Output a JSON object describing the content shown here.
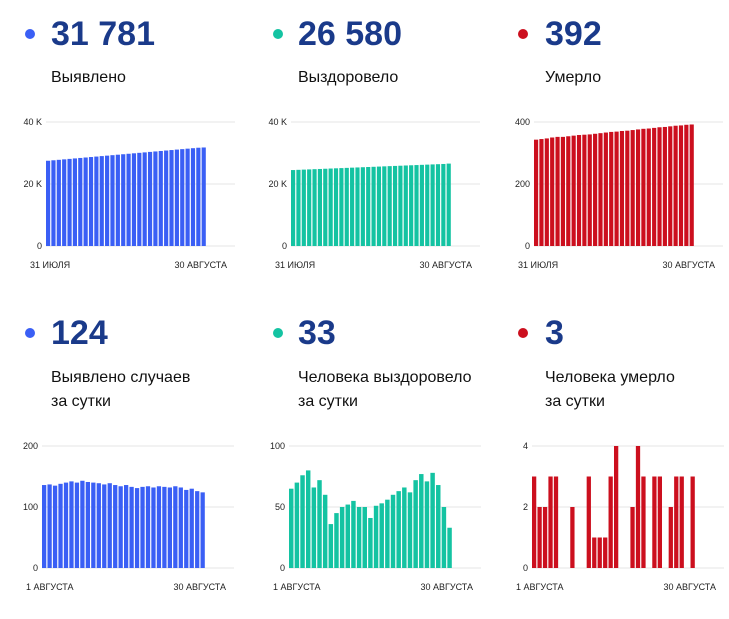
{
  "panels": [
    {
      "value": "31 781",
      "label_lines": [
        "Выявлено"
      ],
      "color": "#3a5ff5",
      "chart_data": {
        "type": "bar",
        "series": [
          {
            "values": [
              27500,
              27650,
              27800,
              27950,
              28100,
              28250,
              28400,
              28550,
              28700,
              28850,
              29000,
              29150,
              29300,
              29450,
              29600,
              29750,
              29900,
              30050,
              30200,
              30350,
              30500,
              30650,
              30800,
              30950,
              31100,
              31250,
              31400,
              31550,
              31700,
              31781
            ]
          }
        ],
        "ylim": [
          0,
          40000
        ],
        "yticks": [
          0,
          20000,
          40000
        ],
        "ytick_labels": [
          "0",
          "20 K",
          "40 K"
        ],
        "x_start_label": "31 ИЮЛЯ",
        "x_end_label": "30 АВГУСТА",
        "grid": true
      }
    },
    {
      "value": "26 580",
      "label_lines": [
        "Выздоровело"
      ],
      "color": "#14c3a2",
      "chart_data": {
        "type": "bar",
        "series": [
          {
            "values": [
              24500,
              24570,
              24640,
              24710,
              24780,
              24850,
              24920,
              24990,
              25060,
              25130,
              25200,
              25270,
              25340,
              25410,
              25480,
              25550,
              25620,
              25690,
              25760,
              25830,
              25900,
              25970,
              26040,
              26110,
              26180,
              26250,
              26320,
              26390,
              26460,
              26580
            ]
          }
        ],
        "ylim": [
          0,
          40000
        ],
        "yticks": [
          0,
          20000,
          40000
        ],
        "ytick_labels": [
          "0",
          "20 K",
          "40 K"
        ],
        "x_start_label": "31 ИЮЛЯ",
        "x_end_label": "30 АВГУСТА",
        "grid": true
      }
    },
    {
      "value": "392",
      "label_lines": [
        "Умерло"
      ],
      "color": "#cc0f1e",
      "chart_data": {
        "type": "bar",
        "series": [
          {
            "values": [
              343,
              345,
              347,
              350,
              352,
              352,
              354,
              356,
              358,
              359,
              360,
              362,
              364,
              366,
              368,
              369,
              371,
              372,
              374,
              376,
              378,
              379,
              381,
              383,
              384,
              386,
              388,
              389,
              391,
              392
            ]
          }
        ],
        "ylim": [
          0,
          400
        ],
        "yticks": [
          0,
          200,
          400
        ],
        "ytick_labels": [
          "0",
          "200",
          "400"
        ],
        "x_start_label": "31 ИЮЛЯ",
        "x_end_label": "30 АВГУСТА",
        "grid": true
      }
    },
    {
      "value": "124",
      "label_lines": [
        "Выявлено случаев",
        "за сутки"
      ],
      "color": "#3a5ff5",
      "chart_data": {
        "type": "bar",
        "series": [
          {
            "values": [
              136,
              137,
              135,
              138,
              140,
              142,
              140,
              143,
              141,
              140,
              139,
              137,
              139,
              136,
              134,
              136,
              133,
              131,
              133,
              134,
              132,
              134,
              133,
              132,
              134,
              132,
              128,
              130,
              126,
              124
            ]
          }
        ],
        "ylim": [
          0,
          200
        ],
        "yticks": [
          0,
          100,
          200
        ],
        "ytick_labels": [
          "0",
          "100",
          "200"
        ],
        "x_start_label": "1 АВГУСТА",
        "x_end_label": "30 АВГУСТА",
        "grid": true
      }
    },
    {
      "value": "33",
      "label_lines": [
        "Человека выздоровело",
        "за сутки"
      ],
      "color": "#14c3a2",
      "chart_data": {
        "type": "bar",
        "series": [
          {
            "values": [
              65,
              70,
              76,
              80,
              66,
              72,
              60,
              36,
              45,
              50,
              52,
              55,
              50,
              50,
              41,
              51,
              53,
              56,
              60,
              63,
              66,
              62,
              72,
              77,
              71,
              78,
              68,
              50,
              33
            ]
          }
        ],
        "ylim": [
          0,
          100
        ],
        "yticks": [
          0,
          50,
          100
        ],
        "ytick_labels": [
          "0",
          "50",
          "100"
        ],
        "x_start_label": "1 АВГУСТА",
        "x_end_label": "30 АВГУСТА",
        "grid": true
      }
    },
    {
      "value": "3",
      "label_lines": [
        "Человека умерло",
        "за сутки"
      ],
      "color": "#cc0f1e",
      "chart_data": {
        "type": "bar",
        "series": [
          {
            "values": [
              3,
              2,
              2,
              3,
              3,
              0,
              0,
              2,
              0,
              0,
              3,
              1,
              1,
              1,
              3,
              4,
              0,
              0,
              2,
              4,
              3,
              0,
              3,
              3,
              0,
              2,
              3,
              3,
              0,
              3
            ]
          }
        ],
        "ylim": [
          0,
          4
        ],
        "yticks": [
          0,
          2,
          4
        ],
        "ytick_labels": [
          "0",
          "2",
          "4"
        ],
        "x_start_label": "1 АВГУСТА",
        "x_end_label": "30 АВГУСТА",
        "grid": true
      }
    }
  ]
}
